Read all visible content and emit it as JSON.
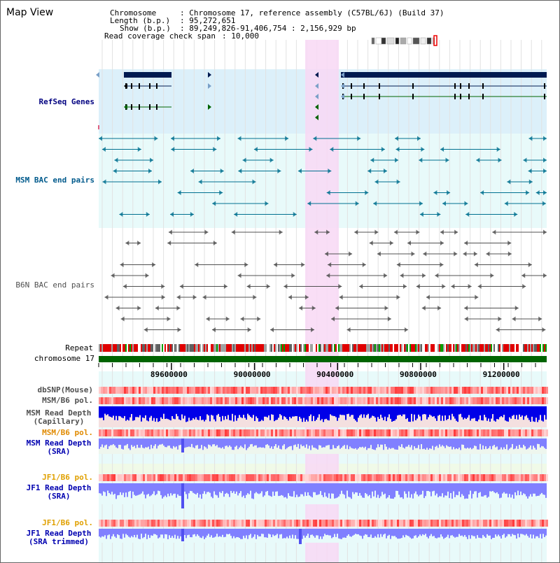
{
  "page": {
    "title": "Map View"
  },
  "info": {
    "chromosome_label": "Chromosome",
    "chromosome_value": ": Chromosome 17, reference assembly (C57BL/6J) (Build 37)",
    "length_label": "Length (b.p.)",
    "length_value": ": 95,272,651",
    "show_label": "Show (b.p.)",
    "show_value": ": 89,249,826-91,406,754 : 2,156,929 bp",
    "coverage_label": "Read coverage check span",
    "coverage_value": ": 10,000"
  },
  "tracks": {
    "refseq": {
      "label": "RefSeq Genes",
      "color": "#000080"
    },
    "msm_bac": {
      "label": "MSM BAC end pairs",
      "color": "#005a8c"
    },
    "b6n_bac": {
      "label": "B6N BAC end pairs",
      "color": "#505050"
    },
    "repeat": {
      "label": "Repeat"
    },
    "chromosome": {
      "label": "chromosome 17"
    },
    "dbsnp": {
      "label": "dbSNP(Mouse)",
      "color": "#505050"
    },
    "msm_b6_pol_1": {
      "label": "MSM/B6 pol.",
      "color": "#505050"
    },
    "msm_depth_cap": {
      "label": "MSM Read Depth\n(Capillary)",
      "color": "#505050"
    },
    "msm_b6_pol_2": {
      "label": "MSM/B6 pol.",
      "color": "#e08a00"
    },
    "msm_depth_sra": {
      "label": "MSM Read Depth\n(SRA)",
      "color": "#0000b0"
    },
    "jf1_b6_pol_1": {
      "label": "JF1/B6 pol.",
      "color": "#e0a000"
    },
    "jf1_depth_sra": {
      "label": "JF1 Read Depth\n(SRA)",
      "color": "#0000b0"
    },
    "jf1_b6_pol_2": {
      "label": "JF1/B6 pol.",
      "color": "#e0a000"
    },
    "jf1_depth_trim": {
      "label": "JF1 Read Depth\n(SRA trimmed)",
      "color": "#0000b0"
    }
  },
  "axis": {
    "ticks": [
      "89600000",
      "90000000",
      "90400000",
      "90800000",
      "91200000"
    ],
    "tick_positions_bp": [
      89600000,
      90000000,
      90400000,
      90800000,
      91200000
    ],
    "range_bp": [
      89249826,
      91406754
    ]
  },
  "colors": {
    "highlight": "#f8d8f4",
    "refseq_bg": "#dcf0fa",
    "cyan_bg": "#e8fafa",
    "gene": "#001a50",
    "msm_feature": "#007090",
    "b6n_feature": "#505050",
    "chromosome_bar": "#006400",
    "depth_blue": "#0000e8",
    "depth_light": "#8080ff",
    "pol_red": "#ff3030"
  }
}
